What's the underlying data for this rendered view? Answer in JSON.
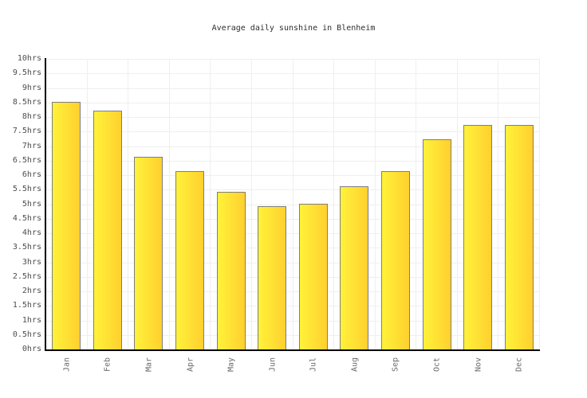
{
  "title": "Average daily sunshine in Blenheim",
  "chart_data": {
    "type": "bar",
    "title": "Average daily sunshine in Blenheim",
    "categories": [
      "Jan",
      "Feb",
      "Mar",
      "Apr",
      "May",
      "Jun",
      "Jul",
      "Aug",
      "Sep",
      "Oct",
      "Nov",
      "Dec"
    ],
    "values": [
      8.5,
      8.2,
      6.6,
      6.1,
      5.4,
      4.9,
      5.0,
      5.6,
      6.1,
      7.2,
      7.7,
      7.7
    ],
    "xlabel": "",
    "ylabel": "",
    "ylim": [
      0,
      10
    ],
    "ytick_step": 0.5,
    "ytick_labels": [
      "0hrs",
      "0.5hrs",
      "1hrs",
      "1.5hrs",
      "2hrs",
      "2.5hrs",
      "3hrs",
      "3.5hrs",
      "4hrs",
      "4.5hrs",
      "5hrs",
      "5.5hrs",
      "6hrs",
      "6.5hrs",
      "7hrs",
      "7.5hrs",
      "8hrs",
      "8.5hrs",
      "9hrs",
      "9.5hrs",
      "10hrs"
    ],
    "grid": true,
    "legend": "none",
    "colors": {
      "bar_gradient_left": "#fff23a",
      "bar_gradient_right": "#ffd02f",
      "bar_border": "#7e7e7e",
      "axis": "#000000",
      "gridline": "#efefef",
      "title_text": "#2e2e2e",
      "y_tick_text": "#4d4d4d",
      "x_tick_text": "#6b6b6b",
      "background": "#ffffff"
    }
  }
}
